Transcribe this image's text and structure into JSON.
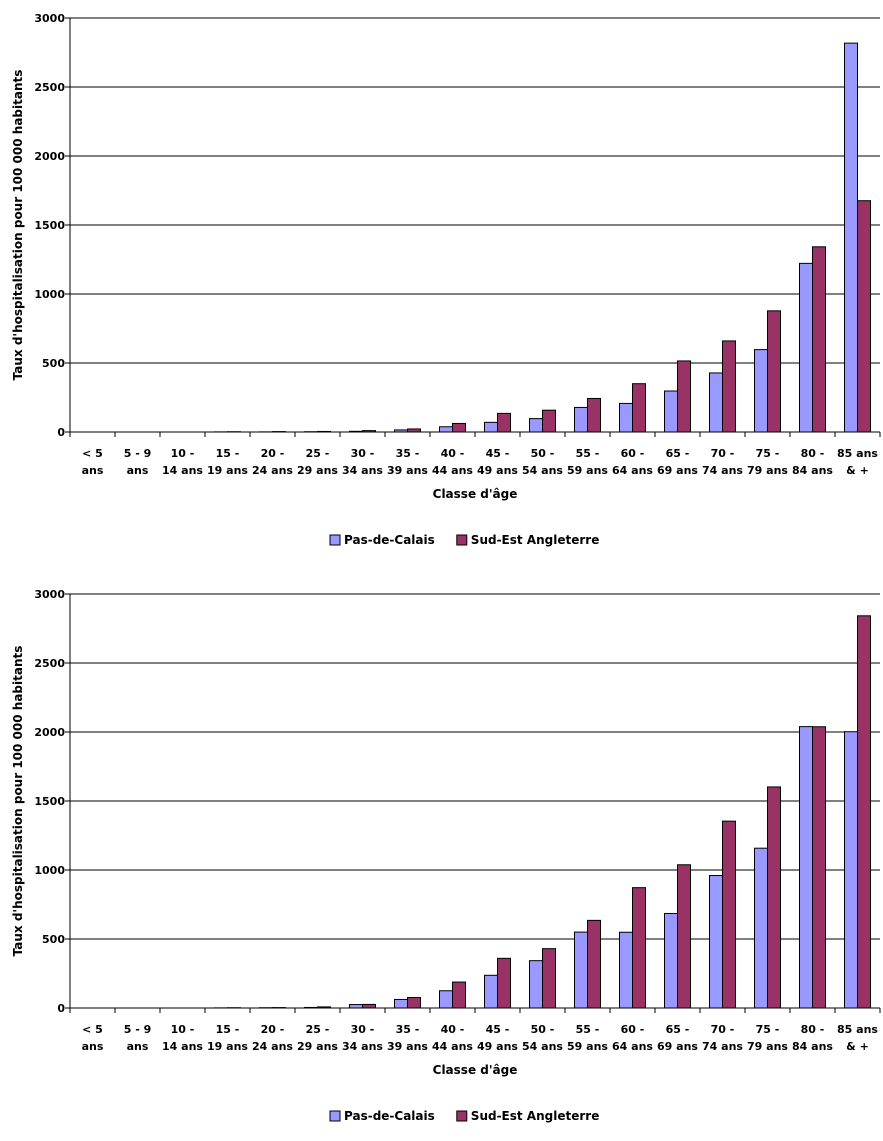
{
  "colors": {
    "pas_de_calais": "#9999ff",
    "sud_est_angleterre": "#993366",
    "gridline": "#000000",
    "bar_stroke": "#000000"
  },
  "chart_data": [
    {
      "type": "bar",
      "title": "",
      "xlabel": "Classe d'âge",
      "ylabel": "Taux d'hospitalisation pour 100 000 habitants",
      "ylim": [
        0,
        3000
      ],
      "yticks": [
        "0",
        "500",
        "1000",
        "1500",
        "2000",
        "2500",
        "3000"
      ],
      "grid": true,
      "legend_position": "bottom",
      "categories": [
        [
          "< 5",
          "ans"
        ],
        [
          "5 - 9",
          "ans"
        ],
        [
          "10 -",
          "14 ans"
        ],
        [
          "15 -",
          "19 ans"
        ],
        [
          "20 -",
          "24 ans"
        ],
        [
          "25 -",
          "29 ans"
        ],
        [
          "30 -",
          "34 ans"
        ],
        [
          "35 -",
          "39 ans"
        ],
        [
          "40 -",
          "44 ans"
        ],
        [
          "45 -",
          "49 ans"
        ],
        [
          "50 -",
          "54 ans"
        ],
        [
          "55 -",
          "59 ans"
        ],
        [
          "60 -",
          "64 ans"
        ],
        [
          "65 -",
          "69 ans"
        ],
        [
          "70 -",
          "74 ans"
        ],
        [
          "75 -",
          "79 ans"
        ],
        [
          "80 -",
          "84 ans"
        ],
        [
          "85 ans",
          "& +"
        ]
      ],
      "series": [
        {
          "name": "Pas-de-Calais",
          "color": "#9999ff",
          "values": [
            0,
            0,
            0,
            1,
            1,
            2,
            5,
            15,
            38,
            70,
            97,
            178,
            207,
            297,
            428,
            597,
            1222,
            2818
          ]
        },
        {
          "name": "Sud-Est Angleterre",
          "color": "#993366",
          "values": [
            0,
            0,
            0,
            2,
            3,
            4,
            10,
            22,
            62,
            135,
            158,
            243,
            350,
            515,
            660,
            878,
            1342,
            1676
          ]
        }
      ]
    },
    {
      "type": "bar",
      "title": "",
      "xlabel": "Classe d'âge",
      "ylabel": "Taux d'hospitalisation pour 100 000 habitants",
      "ylim": [
        0,
        3000
      ],
      "yticks": [
        "0",
        "500",
        "1000",
        "1500",
        "2000",
        "2500",
        "3000"
      ],
      "grid": true,
      "legend_position": "bottom",
      "categories": [
        [
          "< 5",
          "ans"
        ],
        [
          "5 - 9",
          "ans"
        ],
        [
          "10 -",
          "14 ans"
        ],
        [
          "15 -",
          "19 ans"
        ],
        [
          "20 -",
          "24 ans"
        ],
        [
          "25 -",
          "29 ans"
        ],
        [
          "30 -",
          "34 ans"
        ],
        [
          "35 -",
          "39 ans"
        ],
        [
          "40 -",
          "44 ans"
        ],
        [
          "45 -",
          "49 ans"
        ],
        [
          "50 -",
          "54 ans"
        ],
        [
          "55 -",
          "59 ans"
        ],
        [
          "60 -",
          "64 ans"
        ],
        [
          "65 -",
          "69 ans"
        ],
        [
          "70 -",
          "74 ans"
        ],
        [
          "75 -",
          "79 ans"
        ],
        [
          "80 -",
          "84 ans"
        ],
        [
          "85 ans",
          "& +"
        ]
      ],
      "series": [
        {
          "name": "Pas-de-Calais",
          "color": "#9999ff",
          "values": [
            0,
            0,
            0,
            1,
            2,
            4,
            25,
            62,
            125,
            237,
            343,
            550,
            549,
            685,
            960,
            1158,
            2039,
            2002
          ]
        },
        {
          "name": "Sud-Est Angleterre",
          "color": "#993366",
          "values": [
            0,
            0,
            0,
            2,
            3,
            8,
            26,
            76,
            188,
            360,
            430,
            635,
            872,
            1038,
            1354,
            1602,
            2038,
            2842
          ]
        }
      ]
    }
  ]
}
